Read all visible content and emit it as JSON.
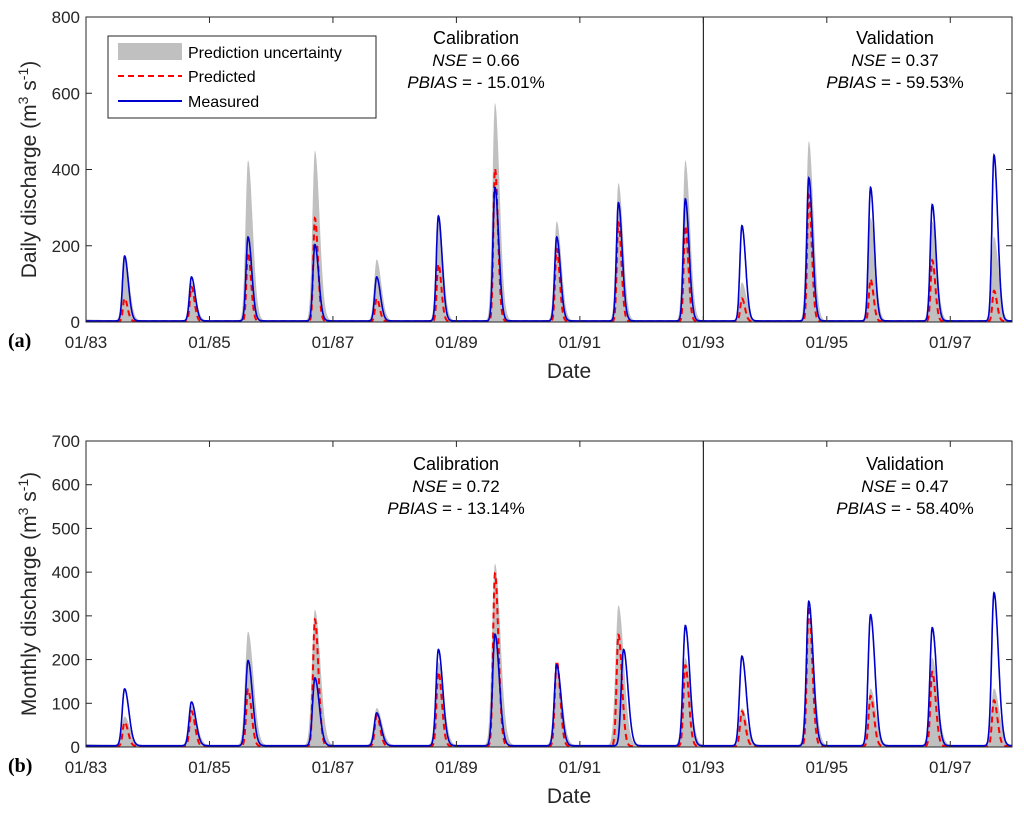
{
  "legend": {
    "uncertainty_label": "Prediction uncertainty",
    "predicted_label": "Predicted",
    "measured_label": "Measured"
  },
  "colors": {
    "uncertainty": "#c0c0c0",
    "predicted": "#ff0000",
    "measured": "#0000cc",
    "axis": "#262626"
  },
  "chart_data": [
    {
      "type": "area",
      "panel_label": "(a)",
      "xlabel": "Date",
      "ylabel": "Daily discharge (m³ s⁻¹)",
      "ylabel_parts": [
        "Daily discharge (m",
        "3",
        " s",
        "-1",
        ")"
      ],
      "ylim": [
        0,
        800
      ],
      "yticks": [
        "0",
        "200",
        "400",
        "600",
        "800"
      ],
      "xlim": [
        "1983-01",
        "1998-01"
      ],
      "xticks": [
        "01/83",
        "01/85",
        "01/87",
        "01/89",
        "01/91",
        "01/93",
        "01/95",
        "01/97"
      ],
      "split_date": "1993-01",
      "legend_position": "top-left",
      "calibration": {
        "title": "Calibration",
        "stat1_name": "NSE",
        "stat1_value": " = 0.66",
        "stat2_name": "PBIAS",
        "stat2_value": " = - 15.01%"
      },
      "validation": {
        "title": "Validation",
        "stat1_name": "NSE",
        "stat1_value": " = 0.37",
        "stat2_name": "PBIAS",
        "stat2_value": " = - 59.53%"
      },
      "series": [
        {
          "name": "Measured",
          "peaks": [
            {
              "date": "1983-08",
              "value": 170
            },
            {
              "date": "1984-09",
              "value": 115
            },
            {
              "date": "1985-08",
              "value": 220
            },
            {
              "date": "1986-09",
              "value": 200
            },
            {
              "date": "1987-09",
              "value": 115
            },
            {
              "date": "1988-09",
              "value": 275
            },
            {
              "date": "1989-08",
              "value": 350
            },
            {
              "date": "1990-08",
              "value": 220
            },
            {
              "date": "1991-08",
              "value": 310
            },
            {
              "date": "1992-09",
              "value": 320
            },
            {
              "date": "1993-08",
              "value": 250
            },
            {
              "date": "1994-09",
              "value": 375
            },
            {
              "date": "1995-09",
              "value": 350
            },
            {
              "date": "1996-09",
              "value": 305
            },
            {
              "date": "1997-09",
              "value": 435
            }
          ]
        },
        {
          "name": "Predicted",
          "peaks": [
            {
              "date": "1983-08",
              "value": 60
            },
            {
              "date": "1984-09",
              "value": 90
            },
            {
              "date": "1985-08",
              "value": 180
            },
            {
              "date": "1986-09",
              "value": 270
            },
            {
              "date": "1987-09",
              "value": 60
            },
            {
              "date": "1988-09",
              "value": 150
            },
            {
              "date": "1989-08",
              "value": 400
            },
            {
              "date": "1990-08",
              "value": 190
            },
            {
              "date": "1991-08",
              "value": 260
            },
            {
              "date": "1992-09",
              "value": 250
            },
            {
              "date": "1993-08",
              "value": 60
            },
            {
              "date": "1994-09",
              "value": 330
            },
            {
              "date": "1995-09",
              "value": 110
            },
            {
              "date": "1996-09",
              "value": 160
            },
            {
              "date": "1997-09",
              "value": 80
            }
          ]
        },
        {
          "name": "Prediction uncertainty",
          "upper_peaks": [
            {
              "date": "1983-08",
              "value": 170
            },
            {
              "date": "1984-09",
              "value": 100
            },
            {
              "date": "1985-08",
              "value": 420
            },
            {
              "date": "1986-09",
              "value": 445
            },
            {
              "date": "1987-09",
              "value": 160
            },
            {
              "date": "1988-09",
              "value": 270
            },
            {
              "date": "1989-08",
              "value": 570
            },
            {
              "date": "1990-08",
              "value": 260
            },
            {
              "date": "1991-08",
              "value": 360
            },
            {
              "date": "1992-09",
              "value": 420
            },
            {
              "date": "1993-08",
              "value": 100
            },
            {
              "date": "1994-09",
              "value": 470
            },
            {
              "date": "1995-09",
              "value": 270
            },
            {
              "date": "1996-09",
              "value": 260
            },
            {
              "date": "1997-09",
              "value": 220
            }
          ]
        }
      ]
    },
    {
      "type": "area",
      "panel_label": "(b)",
      "xlabel": "Date",
      "ylabel": "Monthly discharge (m³ s⁻¹)",
      "ylabel_parts": [
        "Monthly discharge (m",
        "3",
        " s",
        "-1",
        ")"
      ],
      "ylim": [
        0,
        700
      ],
      "yticks": [
        "0",
        "100",
        "200",
        "300",
        "400",
        "500",
        "600",
        "700"
      ],
      "xlim": [
        "1983-01",
        "1998-01"
      ],
      "xticks": [
        "01/83",
        "01/85",
        "01/87",
        "01/89",
        "01/91",
        "01/93",
        "01/95",
        "01/97"
      ],
      "split_date": "1993-01",
      "legend_position": "none",
      "calibration": {
        "title": "Calibration",
        "stat1_name": "NSE",
        "stat1_value": " = 0.72",
        "stat2_name": "PBIAS",
        "stat2_value": " = - 13.14%"
      },
      "validation": {
        "title": "Validation",
        "stat1_name": "NSE",
        "stat1_value": " = 0.47",
        "stat2_name": "PBIAS",
        "stat2_value": " = - 58.40%"
      },
      "series": [
        {
          "name": "Measured",
          "peaks": [
            {
              "date": "1983-08",
              "value": 130
            },
            {
              "date": "1984-09",
              "value": 100
            },
            {
              "date": "1985-08",
              "value": 195
            },
            {
              "date": "1986-09",
              "value": 155
            },
            {
              "date": "1987-09",
              "value": 75
            },
            {
              "date": "1988-09",
              "value": 220
            },
            {
              "date": "1989-08",
              "value": 255
            },
            {
              "date": "1990-08",
              "value": 185
            },
            {
              "date": "1991-09",
              "value": 220
            },
            {
              "date": "1992-09",
              "value": 275
            },
            {
              "date": "1993-08",
              "value": 205
            },
            {
              "date": "1994-09",
              "value": 330
            },
            {
              "date": "1995-09",
              "value": 300
            },
            {
              "date": "1996-09",
              "value": 270
            },
            {
              "date": "1997-09",
              "value": 350
            }
          ]
        },
        {
          "name": "Predicted",
          "peaks": [
            {
              "date": "1983-08",
              "value": 55
            },
            {
              "date": "1984-09",
              "value": 80
            },
            {
              "date": "1985-08",
              "value": 130
            },
            {
              "date": "1986-09",
              "value": 290
            },
            {
              "date": "1987-09",
              "value": 70
            },
            {
              "date": "1988-09",
              "value": 170
            },
            {
              "date": "1989-08",
              "value": 395
            },
            {
              "date": "1990-08",
              "value": 195
            },
            {
              "date": "1991-08",
              "value": 255
            },
            {
              "date": "1992-09",
              "value": 185
            },
            {
              "date": "1993-08",
              "value": 80
            },
            {
              "date": "1994-09",
              "value": 320
            },
            {
              "date": "1995-09",
              "value": 115
            },
            {
              "date": "1996-09",
              "value": 170
            },
            {
              "date": "1997-09",
              "value": 105
            }
          ]
        },
        {
          "name": "Prediction uncertainty",
          "upper_peaks": [
            {
              "date": "1983-08",
              "value": 65
            },
            {
              "date": "1984-09",
              "value": 90
            },
            {
              "date": "1985-08",
              "value": 260
            },
            {
              "date": "1986-09",
              "value": 310
            },
            {
              "date": "1987-09",
              "value": 85
            },
            {
              "date": "1988-09",
              "value": 190
            },
            {
              "date": "1989-08",
              "value": 415
            },
            {
              "date": "1990-08",
              "value": 180
            },
            {
              "date": "1991-08",
              "value": 320
            },
            {
              "date": "1992-09",
              "value": 200
            },
            {
              "date": "1993-08",
              "value": 85
            },
            {
              "date": "1994-09",
              "value": 290
            },
            {
              "date": "1995-09",
              "value": 130
            },
            {
              "date": "1996-09",
              "value": 200
            },
            {
              "date": "1997-09",
              "value": 130
            }
          ]
        }
      ]
    }
  ]
}
